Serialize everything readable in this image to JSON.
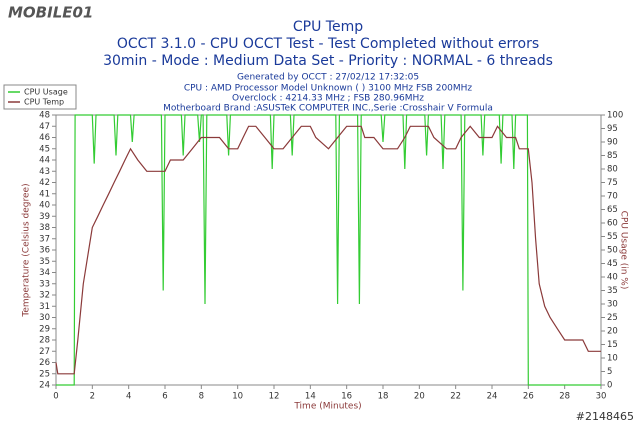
{
  "chart_data": {
    "type": "line",
    "title": "CPU Temp",
    "subtitles": [
      "OCCT 3.1.0 - CPU OCCT Test - Test Completed without errors",
      "30min - Mode : Medium Data Set - Priority : NORMAL - 6 threads"
    ],
    "info": [
      "Generated by OCCT : 27/02/12 17:32:05",
      "CPU : AMD Processor Model Unknown (  ) 3100 MHz FSB 200MHz",
      "Overclock : 4214.33 MHz ; FSB 280.96MHz",
      "Motherboard Brand :ASUSTeK COMPUTER INC.,Serie :Crosshair V Formula"
    ],
    "watermark": "MOBILE01",
    "image_id": "#2148465",
    "xlabel": "Time (Minutes)",
    "ylabel": "Temperature (Celsius degree)",
    "y2label": "CPU Usage (in %)",
    "xlim": [
      0,
      30
    ],
    "xticks": [
      0,
      2,
      4,
      6,
      8,
      10,
      12,
      14,
      16,
      18,
      20,
      22,
      24,
      26,
      28,
      30
    ],
    "ylim": [
      24,
      48
    ],
    "yticks": [
      24,
      25,
      26,
      27,
      28,
      29,
      30,
      31,
      32,
      33,
      34,
      35,
      36,
      37,
      38,
      39,
      40,
      41,
      42,
      43,
      44,
      45,
      46,
      47,
      48
    ],
    "y2lim": [
      0,
      100
    ],
    "y2ticks": [
      0,
      5,
      10,
      15,
      20,
      25,
      30,
      35,
      40,
      45,
      50,
      55,
      60,
      65,
      70,
      75,
      80,
      85,
      90,
      95,
      100
    ],
    "legend": "upper left",
    "series": [
      {
        "name": "CPU Usage",
        "color": "#33cc33",
        "axis": "y2",
        "x": [
          0,
          0.95,
          1.0,
          1.05,
          2.0,
          2.1,
          2.2,
          3.2,
          3.3,
          3.4,
          4.1,
          4.2,
          4.3,
          5.8,
          5.9,
          6.0,
          6.9,
          7.0,
          7.1,
          7.8,
          7.9,
          8.0,
          8.1,
          8.2,
          8.3,
          9.4,
          9.5,
          9.6,
          11.8,
          11.9,
          12.0,
          12.9,
          13.0,
          13.1,
          15.4,
          15.5,
          15.6,
          16.6,
          16.7,
          16.8,
          17.9,
          18.0,
          18.1,
          19.1,
          19.2,
          19.3,
          20.3,
          20.4,
          20.5,
          21.2,
          21.3,
          21.4,
          22.3,
          22.4,
          22.5,
          23.4,
          23.5,
          23.6,
          24.4,
          24.5,
          24.6,
          25.1,
          25.2,
          25.3,
          25.95,
          26.0,
          30
        ],
        "values": [
          0,
          0,
          0,
          100,
          100,
          82,
          100,
          100,
          85,
          100,
          100,
          90,
          100,
          100,
          35,
          100,
          100,
          85,
          100,
          100,
          90,
          100,
          100,
          30,
          100,
          100,
          85,
          100,
          100,
          80,
          100,
          100,
          85,
          100,
          100,
          30,
          100,
          100,
          30,
          100,
          100,
          90,
          100,
          100,
          80,
          100,
          100,
          85,
          100,
          100,
          80,
          100,
          100,
          35,
          100,
          100,
          85,
          100,
          100,
          82,
          100,
          100,
          80,
          100,
          100,
          0,
          0
        ]
      },
      {
        "name": "CPU Temp",
        "color": "#8b3a3a",
        "x": [
          0,
          0.1,
          1.0,
          1.2,
          1.5,
          1.8,
          2.0,
          2.3,
          2.6,
          2.9,
          3.2,
          3.5,
          3.8,
          4.1,
          4.5,
          5,
          6,
          6.3,
          7,
          7.5,
          8,
          9,
          9.5,
          10,
          10.3,
          10.6,
          11,
          11.5,
          12,
          12.5,
          13,
          13.5,
          14,
          14.3,
          15,
          15.5,
          16,
          16.8,
          17,
          17.5,
          18,
          18.8,
          19.2,
          19.5,
          20.5,
          20.8,
          21.5,
          22,
          22.3,
          22.8,
          23.3,
          24,
          24.3,
          24.8,
          25.3,
          25.5,
          26,
          26.2,
          26.4,
          26.6,
          26.9,
          27.2,
          27.6,
          28,
          29,
          29.3,
          30
        ],
        "values": [
          26,
          25,
          25,
          28,
          33,
          36,
          38,
          39,
          40,
          41,
          42,
          43,
          44,
          45,
          44,
          43,
          43,
          44,
          44,
          45,
          46,
          46,
          45,
          45,
          46,
          47,
          47,
          46,
          45,
          45,
          46,
          47,
          47,
          46,
          45,
          46,
          47,
          47,
          46,
          46,
          45,
          45,
          46,
          47,
          47,
          46,
          45,
          45,
          46,
          47,
          46,
          46,
          47,
          46,
          46,
          45,
          45,
          42,
          37,
          33,
          31,
          30,
          29,
          28,
          28,
          27,
          27
        ]
      }
    ]
  }
}
